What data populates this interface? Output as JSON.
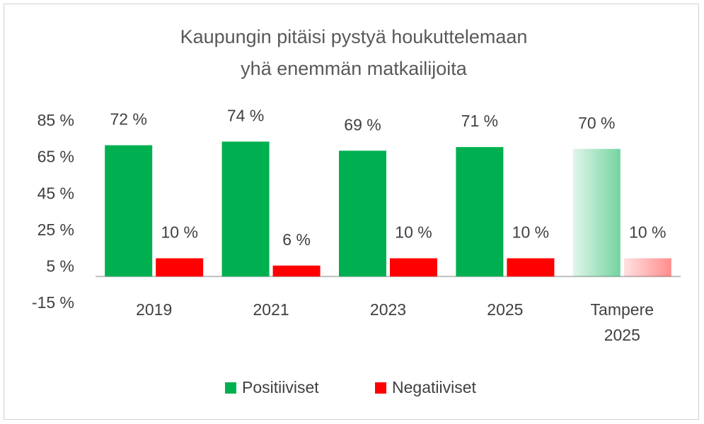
{
  "chart_data": {
    "type": "bar",
    "title": "Kaupungin pitäisi pystyä houkuttelemaan yhä enemmän matkailijoita",
    "categories": [
      "2019",
      "2021",
      "2023",
      "2025",
      "Tampere 2025"
    ],
    "series": [
      {
        "name": "Positiiviset",
        "color": "#00b050",
        "values": [
          72,
          74,
          69,
          71,
          70
        ],
        "value_labels": [
          "72 %",
          "74 %",
          "69 %",
          "71 %",
          "70 %"
        ]
      },
      {
        "name": "Negatiiviset",
        "color": "#ff0000",
        "values": [
          10,
          6,
          10,
          10,
          10
        ],
        "value_labels": [
          "10 %",
          "6 %",
          "10 %",
          "10 %",
          "10 %"
        ]
      }
    ],
    "ylim": [
      -15,
      85
    ],
    "yticks": [
      {
        "value": -15,
        "label": "-15 %"
      },
      {
        "value": 5,
        "label": "5 %"
      },
      {
        "value": 25,
        "label": "25 %"
      },
      {
        "value": 45,
        "label": "45 %"
      },
      {
        "value": 65,
        "label": "65 %"
      },
      {
        "value": 85,
        "label": "85 %"
      }
    ],
    "grid": false,
    "legend": "bottom"
  }
}
